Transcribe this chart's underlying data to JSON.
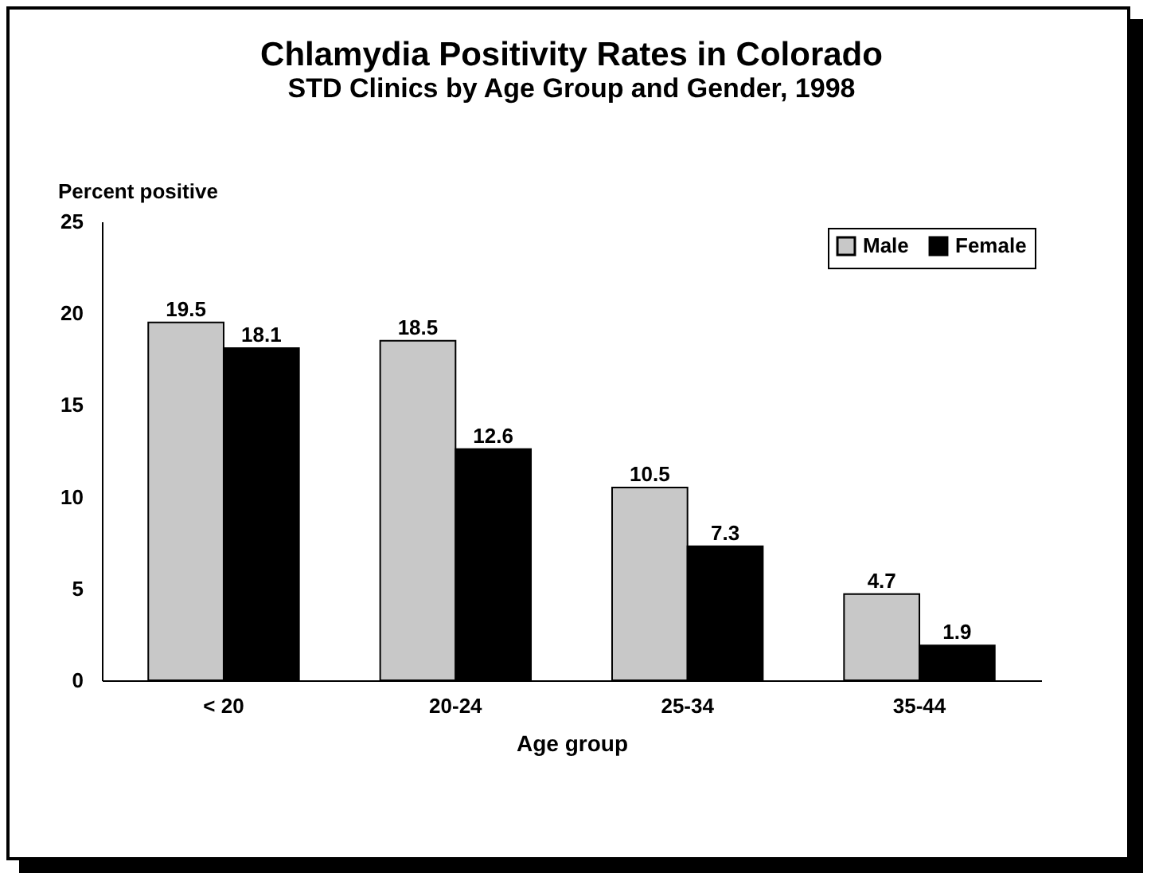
{
  "chart_data": {
    "type": "bar",
    "title": "Chlamydia Positivity Rates in Colorado",
    "subtitle": "STD Clinics by Age Group and Gender, 1998",
    "xlabel": "Age group",
    "ylabel": "Percent positive",
    "categories": [
      "< 20",
      "20-24",
      "25-34",
      "35-44"
    ],
    "series": [
      {
        "name": "Male",
        "color": "#c8c8c8",
        "values": [
          19.5,
          18.5,
          10.5,
          4.7
        ]
      },
      {
        "name": "Female",
        "color": "#000000",
        "values": [
          18.1,
          12.6,
          7.3,
          1.9
        ]
      }
    ],
    "ylim": [
      0,
      25
    ],
    "yticks": [
      0,
      5,
      10,
      15,
      20,
      25
    ],
    "grid": false,
    "legend": "top right",
    "data_labels": true
  }
}
